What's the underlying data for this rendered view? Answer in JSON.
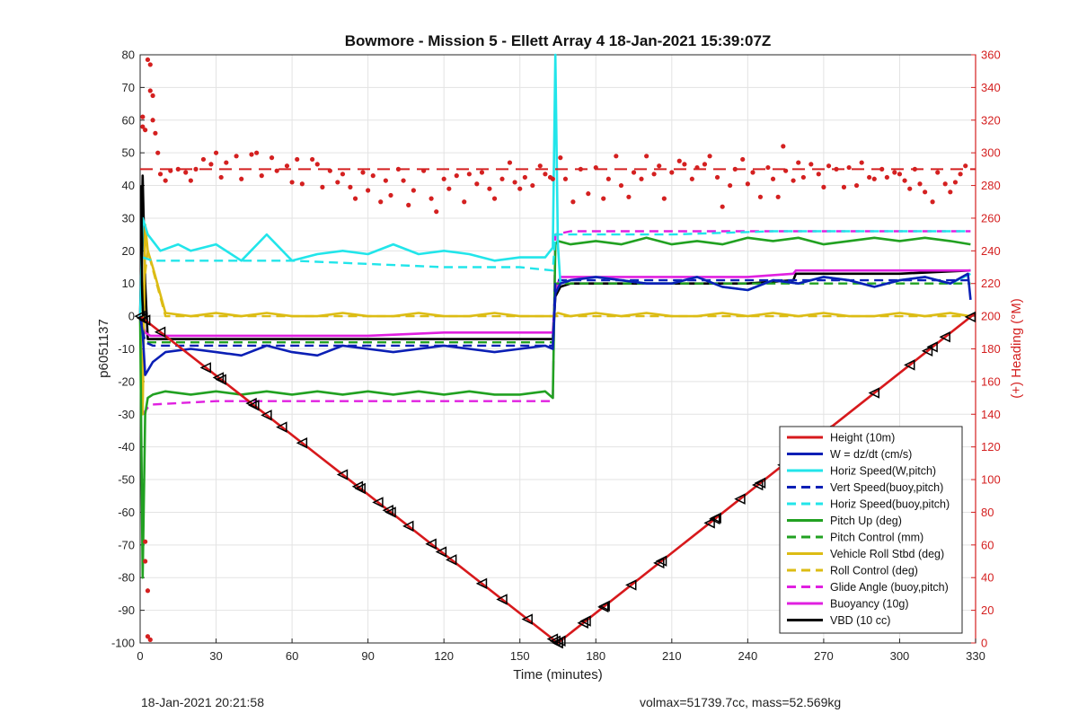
{
  "chart_data": {
    "type": "line",
    "title": "Bowmore - Mission 5 - Ellett Array 4 18-Jan-2021 15:39:07Z",
    "xlabel": "Time (minutes)",
    "ylabel_left": "p6051137",
    "ylabel_right": "(+) Heading (°M)",
    "xlim": [
      0,
      330
    ],
    "ylim_left": [
      -100,
      80
    ],
    "ylim_right": [
      0,
      360
    ],
    "x_ticks": [
      0,
      30,
      60,
      90,
      120,
      150,
      180,
      210,
      240,
      270,
      300,
      330
    ],
    "y_ticks_left": [
      80,
      70,
      60,
      50,
      40,
      30,
      20,
      10,
      0,
      -10,
      -20,
      -30,
      -40,
      -50,
      -60,
      -70,
      -80,
      -90,
      -100
    ],
    "y_ticks_right": [
      360,
      340,
      320,
      300,
      280,
      260,
      240,
      220,
      200,
      180,
      160,
      140,
      120,
      100,
      80,
      60,
      40,
      20,
      0
    ],
    "grid": true,
    "legend_position": "bottom-right",
    "colors": {
      "red": "#d7191c",
      "blue": "#0b1fb5",
      "cyan": "#22e5ea",
      "green": "#21a121",
      "yellow": "#dcbc14",
      "magenta": "#e020e0",
      "black": "#000000",
      "right_axis": "#d42020"
    },
    "series": [
      {
        "name": "Height (10m)",
        "color": "#d7191c",
        "style": "solid",
        "x": [
          0,
          165,
          330
        ],
        "values": [
          0,
          -100,
          1
        ]
      },
      {
        "name": "W = dz/dt (cm/s)",
        "color": "#0b1fb5",
        "style": "solid",
        "x": [
          0,
          1,
          2,
          5,
          10,
          20,
          30,
          40,
          50,
          60,
          70,
          80,
          90,
          100,
          110,
          120,
          130,
          140,
          150,
          160,
          163,
          164,
          166,
          170,
          180,
          190,
          200,
          210,
          220,
          230,
          240,
          250,
          260,
          270,
          280,
          290,
          300,
          310,
          320,
          327,
          328
        ],
        "values": [
          0,
          -5,
          -18,
          -14,
          -11,
          -10,
          -11,
          -12,
          -9,
          -11,
          -12,
          -9,
          -10,
          -11,
          -10,
          -9,
          -10,
          -11,
          -10,
          -9,
          -10,
          7,
          10,
          11,
          12,
          11,
          10,
          10,
          12,
          9,
          8,
          11,
          10,
          12,
          11,
          9,
          11,
          12,
          10,
          13,
          5
        ]
      },
      {
        "name": "Horiz Speed(W,pitch)",
        "color": "#22e5ea",
        "style": "solid",
        "x": [
          0,
          1,
          3,
          8,
          15,
          20,
          30,
          40,
          50,
          60,
          70,
          80,
          90,
          100,
          110,
          120,
          130,
          140,
          150,
          160,
          163,
          164,
          165,
          166,
          170,
          180,
          190,
          200,
          210,
          220,
          230,
          240,
          250,
          260,
          270,
          280,
          290,
          300,
          310,
          320,
          328
        ],
        "values": [
          0,
          30,
          25,
          20,
          22,
          20,
          22,
          17,
          25,
          17,
          19,
          20,
          19,
          22,
          19,
          20,
          19,
          17,
          18,
          18,
          21,
          80,
          22,
          10,
          11,
          12,
          11,
          10,
          10,
          12,
          9,
          8,
          11,
          10,
          12,
          11,
          9,
          11,
          12,
          10,
          13
        ]
      },
      {
        "name": "Vert Speed(buoy,pitch)",
        "color": "#0b1fb5",
        "style": "dashed",
        "x": [
          0,
          2,
          5,
          30,
          60,
          90,
          120,
          150,
          163,
          164,
          170,
          210,
          250,
          290,
          328
        ],
        "values": [
          0,
          -8,
          -9,
          -9,
          -9,
          -9,
          -9,
          -9,
          -9,
          11,
          11,
          11,
          11,
          11,
          11
        ]
      },
      {
        "name": "Horiz Speed(buoy,pitch)",
        "color": "#22e5ea",
        "style": "dashed",
        "x": [
          1,
          5,
          30,
          60,
          90,
          120,
          150,
          163,
          164,
          170,
          210,
          250,
          290,
          328
        ],
        "values": [
          18,
          17,
          17,
          17,
          16,
          15,
          15,
          14,
          25,
          25,
          25,
          26,
          26,
          26
        ]
      },
      {
        "name": "Pitch Up (deg)",
        "color": "#21a121",
        "style": "solid",
        "x": [
          0,
          1,
          2,
          3,
          5,
          10,
          20,
          30,
          40,
          50,
          60,
          70,
          80,
          90,
          100,
          110,
          120,
          130,
          140,
          150,
          160,
          163,
          164,
          165,
          170,
          180,
          190,
          200,
          210,
          220,
          230,
          240,
          250,
          260,
          270,
          280,
          290,
          300,
          310,
          320,
          328
        ],
        "values": [
          0,
          -80,
          -30,
          -25,
          -24,
          -23,
          -24,
          -23,
          -24,
          -23,
          -24,
          -23,
          -24,
          -23,
          -24,
          -23,
          -24,
          -23,
          -24,
          -24,
          -23,
          -25,
          22,
          23,
          22,
          23,
          22,
          24,
          22,
          23,
          22,
          24,
          23,
          24,
          22,
          23,
          24,
          23,
          24,
          23,
          22
        ]
      },
      {
        "name": "Pitch Control (mm)",
        "color": "#21a121",
        "style": "dashed",
        "x": [
          0,
          2,
          5,
          30,
          60,
          90,
          120,
          150,
          163,
          164,
          170,
          210,
          250,
          290,
          328
        ],
        "values": [
          0,
          -8,
          -8,
          -8,
          -8,
          -8,
          -8,
          -8,
          -8,
          10,
          10,
          10,
          10,
          10,
          10
        ]
      },
      {
        "name": "Vehicle Roll Stbd (deg)",
        "color": "#dcbc14",
        "style": "solid",
        "x": [
          0,
          1,
          2,
          3,
          5,
          10,
          20,
          30,
          40,
          50,
          60,
          70,
          80,
          90,
          100,
          110,
          120,
          130,
          140,
          150,
          163,
          165,
          170,
          180,
          190,
          200,
          210,
          220,
          230,
          240,
          250,
          260,
          270,
          280,
          290,
          300,
          310,
          320,
          328
        ],
        "values": [
          0,
          -30,
          28,
          20,
          15,
          1,
          0,
          1,
          0,
          1,
          0,
          0,
          1,
          0,
          0,
          1,
          0,
          0,
          1,
          0,
          0,
          1,
          0,
          1,
          0,
          1,
          0,
          0,
          1,
          0,
          1,
          0,
          1,
          0,
          0,
          1,
          0,
          1,
          0
        ]
      },
      {
        "name": "Roll Control (deg)",
        "color": "#dcbc14",
        "style": "dashed",
        "x": [
          0,
          3,
          10,
          40,
          60,
          90,
          120,
          150,
          160,
          163,
          200,
          250,
          300,
          328
        ],
        "values": [
          0,
          20,
          0,
          0,
          0,
          0,
          0,
          0,
          0,
          0,
          0,
          0,
          0,
          0
        ]
      },
      {
        "name": "Glide Angle (buoy,pitch)",
        "color": "#e020e0",
        "style": "dashed",
        "x": [
          1,
          3,
          5,
          30,
          60,
          90,
          120,
          150,
          163,
          164,
          170,
          210,
          250,
          290,
          328
        ],
        "values": [
          -30,
          -28,
          -27,
          -26,
          -26,
          -26,
          -26,
          -26,
          -26,
          25,
          26,
          26,
          26,
          26,
          26
        ]
      },
      {
        "name": "Buoyancy (10g)",
        "color": "#e020e0",
        "style": "solid",
        "x": [
          0,
          2,
          4,
          30,
          60,
          90,
          120,
          150,
          163,
          164,
          166,
          200,
          240,
          258,
          259,
          300,
          328
        ],
        "values": [
          0,
          -5,
          -6,
          -6,
          -6,
          -6,
          -5,
          -5,
          -5,
          8,
          12,
          12,
          12,
          13,
          14,
          14,
          14
        ]
      },
      {
        "name": "VBD (10 cc)",
        "color": "#000000",
        "style": "solid",
        "x": [
          0,
          1,
          2,
          3,
          5,
          30,
          60,
          90,
          120,
          150,
          163,
          164,
          166,
          170,
          200,
          240,
          258,
          259,
          300,
          328
        ],
        "values": [
          0,
          43,
          10,
          -7,
          -7,
          -7,
          -7,
          -7,
          -7,
          -7,
          -7,
          6,
          9,
          10,
          10,
          10,
          11,
          13,
          13,
          14
        ]
      }
    ],
    "heading": {
      "axis": "right",
      "color": "#d42020",
      "mean_line": 290,
      "points": [
        [
          1,
          316
        ],
        [
          1,
          322
        ],
        [
          2,
          314
        ],
        [
          3,
          357
        ],
        [
          4,
          354
        ],
        [
          4,
          338
        ],
        [
          5,
          335
        ],
        [
          5,
          320
        ],
        [
          6,
          312
        ],
        [
          7,
          300
        ],
        [
          8,
          287
        ],
        [
          10,
          283
        ],
        [
          12,
          289
        ],
        [
          15,
          290
        ],
        [
          18,
          288
        ],
        [
          20,
          283
        ],
        [
          22,
          290
        ],
        [
          25,
          296
        ],
        [
          28,
          293
        ],
        [
          30,
          300
        ],
        [
          32,
          285
        ],
        [
          34,
          294
        ],
        [
          38,
          298
        ],
        [
          40,
          284
        ],
        [
          44,
          299
        ],
        [
          46,
          300
        ],
        [
          48,
          286
        ],
        [
          52,
          297
        ],
        [
          54,
          289
        ],
        [
          58,
          292
        ],
        [
          60,
          282
        ],
        [
          62,
          296
        ],
        [
          64,
          281
        ],
        [
          68,
          296
        ],
        [
          70,
          293
        ],
        [
          72,
          279
        ],
        [
          75,
          289
        ],
        [
          78,
          282
        ],
        [
          80,
          287
        ],
        [
          83,
          279
        ],
        [
          85,
          272
        ],
        [
          88,
          288
        ],
        [
          90,
          277
        ],
        [
          92,
          286
        ],
        [
          95,
          270
        ],
        [
          97,
          283
        ],
        [
          99,
          274
        ],
        [
          102,
          290
        ],
        [
          104,
          283
        ],
        [
          106,
          268
        ],
        [
          108,
          277
        ],
        [
          112,
          289
        ],
        [
          115,
          272
        ],
        [
          117,
          264
        ],
        [
          120,
          284
        ],
        [
          122,
          278
        ],
        [
          125,
          286
        ],
        [
          128,
          270
        ],
        [
          130,
          287
        ],
        [
          133,
          281
        ],
        [
          135,
          288
        ],
        [
          138,
          278
        ],
        [
          140,
          272
        ],
        [
          143,
          284
        ],
        [
          146,
          294
        ],
        [
          148,
          282
        ],
        [
          150,
          278
        ],
        [
          152,
          285
        ],
        [
          155,
          280
        ],
        [
          158,
          292
        ],
        [
          160,
          287
        ],
        [
          162,
          285
        ],
        [
          163,
          284
        ],
        [
          166,
          297
        ],
        [
          168,
          284
        ],
        [
          171,
          270
        ],
        [
          174,
          290
        ],
        [
          177,
          275
        ],
        [
          180,
          291
        ],
        [
          183,
          272
        ],
        [
          185,
          284
        ],
        [
          188,
          298
        ],
        [
          190,
          280
        ],
        [
          193,
          273
        ],
        [
          195,
          288
        ],
        [
          198,
          284
        ],
        [
          200,
          298
        ],
        [
          203,
          287
        ],
        [
          205,
          292
        ],
        [
          207,
          272
        ],
        [
          210,
          288
        ],
        [
          213,
          295
        ],
        [
          215,
          293
        ],
        [
          218,
          284
        ],
        [
          220,
          291
        ],
        [
          223,
          293
        ],
        [
          225,
          298
        ],
        [
          228,
          285
        ],
        [
          230,
          267
        ],
        [
          233,
          280
        ],
        [
          235,
          290
        ],
        [
          238,
          296
        ],
        [
          240,
          281
        ],
        [
          242,
          288
        ],
        [
          245,
          273
        ],
        [
          248,
          291
        ],
        [
          250,
          284
        ],
        [
          252,
          273
        ],
        [
          254,
          304
        ],
        [
          255,
          289
        ],
        [
          258,
          283
        ],
        [
          260,
          294
        ],
        [
          262,
          285
        ],
        [
          265,
          293
        ],
        [
          268,
          287
        ],
        [
          270,
          279
        ],
        [
          272,
          292
        ],
        [
          275,
          290
        ],
        [
          278,
          279
        ],
        [
          280,
          291
        ],
        [
          283,
          280
        ],
        [
          285,
          294
        ],
        [
          288,
          285
        ],
        [
          290,
          284
        ],
        [
          293,
          290
        ],
        [
          295,
          285
        ],
        [
          298,
          288
        ],
        [
          300,
          287
        ],
        [
          302,
          283
        ],
        [
          304,
          278
        ],
        [
          306,
          290
        ],
        [
          308,
          281
        ],
        [
          310,
          276
        ],
        [
          313,
          270
        ],
        [
          315,
          288
        ],
        [
          318,
          281
        ],
        [
          320,
          276
        ],
        [
          322,
          282
        ],
        [
          324,
          287
        ],
        [
          326,
          292
        ]
      ],
      "outliers": [
        [
          2,
          62
        ],
        [
          2,
          50
        ],
        [
          3,
          32
        ],
        [
          3,
          4
        ],
        [
          4,
          2
        ]
      ]
    },
    "vbd_spike": {
      "x": [
        0.5,
        0.7,
        0.9,
        1.2
      ],
      "values": [
        40,
        10,
        5,
        0
      ]
    },
    "markers": {
      "descent_x": [
        0,
        1,
        2,
        8,
        26,
        31,
        32,
        44,
        45,
        50,
        56,
        64,
        80,
        86,
        87,
        94,
        98,
        99,
        106,
        115,
        119,
        123,
        135,
        143,
        153,
        163,
        164,
        165
      ],
      "ascent_x": [
        165,
        166,
        175,
        176,
        183,
        183.5,
        194,
        205,
        206,
        225,
        227,
        227.5,
        237,
        244,
        245,
        254,
        256,
        261,
        268,
        271,
        290,
        304,
        311,
        313,
        318,
        328
      ],
      "color": "#000000"
    }
  },
  "footer": {
    "left_text": "18-Jan-2021 20:21:58",
    "right_text": "volmax=51739.7cc, mass=52.569kg"
  }
}
